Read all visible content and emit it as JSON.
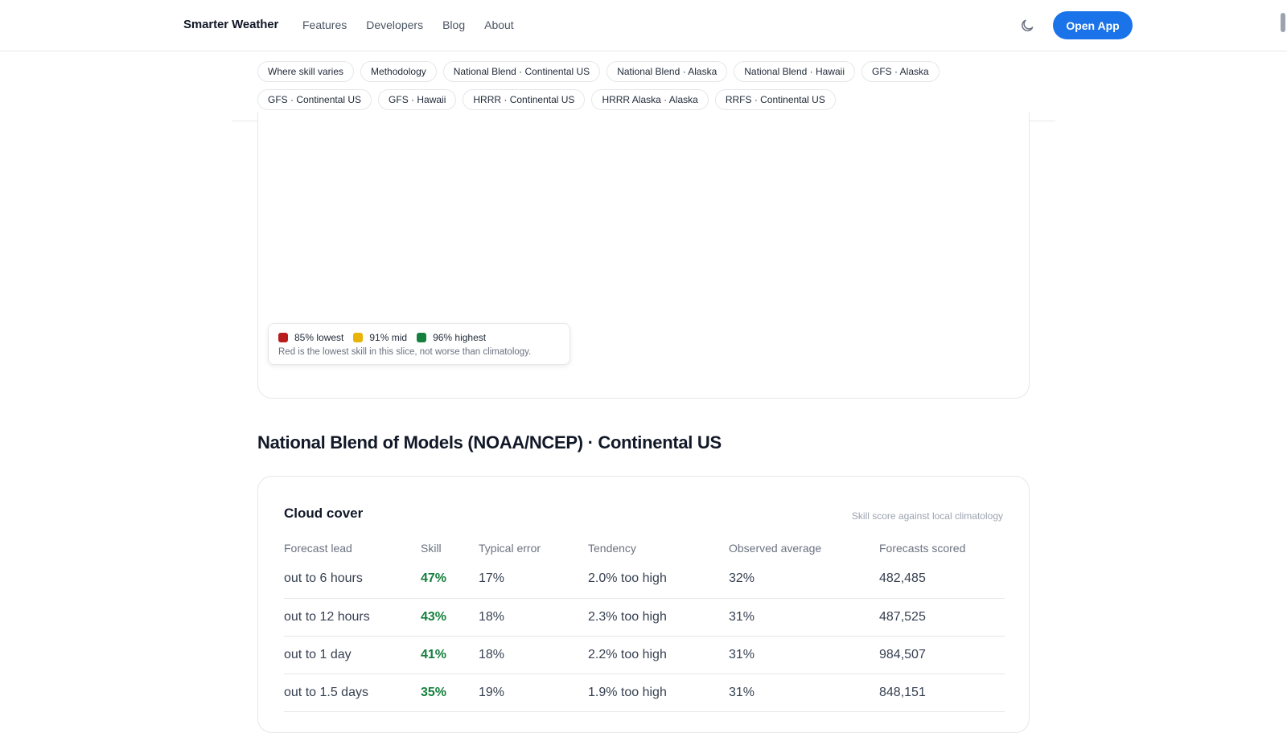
{
  "header": {
    "brand": "Smarter Weather",
    "nav": [
      "Features",
      "Developers",
      "Blog",
      "About"
    ],
    "theme_icon": "moon-icon",
    "open_app_label": "Open App"
  },
  "chips": {
    "row1": [
      "Where skill varies",
      "Methodology",
      "National Blend · Continental US",
      "National Blend · Alaska",
      "National Blend · Hawaii",
      "GFS · Alaska"
    ],
    "row2": [
      "GFS · Continental US",
      "GFS · Hawaii",
      "HRRR · Continental US",
      "HRRR Alaska · Alaska",
      "RRFS · Continental US"
    ]
  },
  "legend": {
    "items": [
      {
        "label": "85% lowest",
        "color": "#b91c1c"
      },
      {
        "label": "91% mid",
        "color": "#eab308"
      },
      {
        "label": "96% highest",
        "color": "#15803d"
      }
    ],
    "note": "Red is the lowest skill in this slice, not worse than climatology."
  },
  "section": {
    "title": "National Blend of Models (NOAA/NCEP) · Continental US"
  },
  "card": {
    "title": "Cloud cover",
    "subtitle": "Skill score against local climatology",
    "columns": [
      "Forecast lead",
      "Skill",
      "Typical error",
      "Tendency",
      "Observed average",
      "Forecasts scored"
    ],
    "rows": [
      [
        "out to 6 hours",
        "47%",
        "17%",
        "2.0% too high",
        "32%",
        "482,485"
      ],
      [
        "out to 12 hours",
        "43%",
        "18%",
        "2.3% too high",
        "31%",
        "487,525"
      ],
      [
        "out to 1 day",
        "41%",
        "18%",
        "2.2% too high",
        "31%",
        "984,507"
      ],
      [
        "out to 1.5 days",
        "35%",
        "19%",
        "1.9% too high",
        "31%",
        "848,151"
      ]
    ]
  },
  "colors": {
    "accent": "#1a73e8",
    "skill_good": "#15803d"
  }
}
